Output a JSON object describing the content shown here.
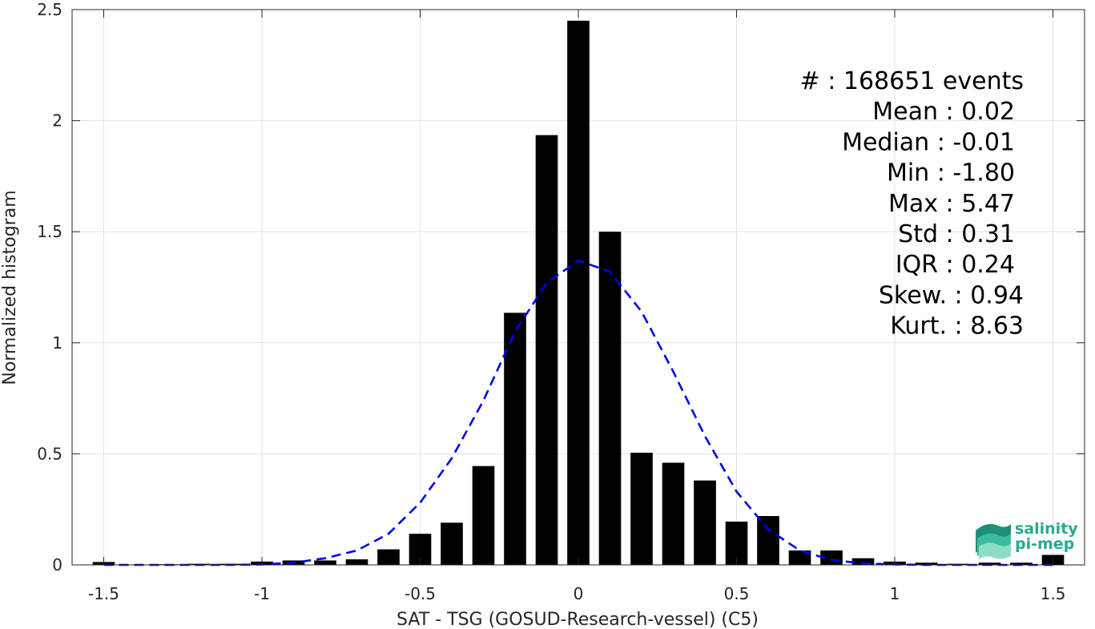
{
  "chart_data": {
    "type": "bar",
    "xlabel": "SAT - TSG (GOSUD-Research-vessel) (C5)",
    "ylabel": "Normalized histogram",
    "xlim": [
      -1.6,
      1.6
    ],
    "ylim": [
      0,
      2.5
    ],
    "grid": true,
    "x_ticks": [
      -1.5,
      -1,
      -0.5,
      0,
      0.5,
      1,
      1.5
    ],
    "x_tick_labels": [
      "-1.5",
      "-1",
      "-0.5",
      "0",
      "0.5",
      "1",
      "1.5"
    ],
    "y_ticks": [
      0,
      0.5,
      1,
      1.5,
      2,
      2.5
    ],
    "y_tick_labels": [
      "0",
      "0.5",
      "1",
      "1.5",
      "2",
      "2.5"
    ],
    "bar_width": 0.07,
    "bars": {
      "x": [
        -1.5,
        -1.3,
        -1.2,
        -1.1,
        -1.0,
        -0.9,
        -0.8,
        -0.7,
        -0.6,
        -0.5,
        -0.4,
        -0.3,
        -0.2,
        -0.1,
        0.0,
        0.1,
        0.2,
        0.3,
        0.4,
        0.5,
        0.6,
        0.7,
        0.8,
        0.9,
        1.0,
        1.1,
        1.2,
        1.3,
        1.4,
        1.5
      ],
      "values": [
        0.013,
        0.003,
        0.005,
        0.005,
        0.015,
        0.02,
        0.02,
        0.025,
        0.07,
        0.14,
        0.19,
        0.445,
        1.135,
        1.935,
        2.45,
        1.5,
        0.505,
        0.46,
        0.38,
        0.195,
        0.22,
        0.065,
        0.065,
        0.03,
        0.015,
        0.01,
        0.005,
        0.01,
        0.01,
        0.045
      ],
      "color": "#000000"
    },
    "fit_curve": {
      "style": "dashed",
      "color": "#0000ee",
      "x": [
        -1.5,
        -1.4,
        -1.3,
        -1.2,
        -1.1,
        -1.0,
        -0.9,
        -0.8,
        -0.7,
        -0.6,
        -0.5,
        -0.4,
        -0.3,
        -0.2,
        -0.1,
        0.0,
        0.1,
        0.2,
        0.3,
        0.4,
        0.5,
        0.6,
        0.7,
        0.8,
        0.9,
        1.0,
        1.1,
        1.2,
        1.3,
        1.4,
        1.5
      ],
      "y": [
        0.0,
        0.0,
        0.0,
        0.0,
        0.0,
        0.002,
        0.01,
        0.03,
        0.065,
        0.14,
        0.28,
        0.48,
        0.74,
        1.05,
        1.27,
        1.37,
        1.32,
        1.14,
        0.87,
        0.58,
        0.33,
        0.16,
        0.065,
        0.022,
        0.007,
        0.002,
        0.0,
        0.0,
        0.0,
        0.0,
        0.0
      ]
    },
    "annotations": [
      "#  : 168651 events",
      "Mean : 0.02",
      "Median : -0.01",
      "Min : -1.80",
      "Max : 5.47",
      "Std : 0.31",
      "IQR : 0.24",
      "Skew. : 0.94",
      "Kurt. : 8.63"
    ]
  },
  "logo": {
    "line1": "salinity",
    "line2": "pi-mep"
  }
}
